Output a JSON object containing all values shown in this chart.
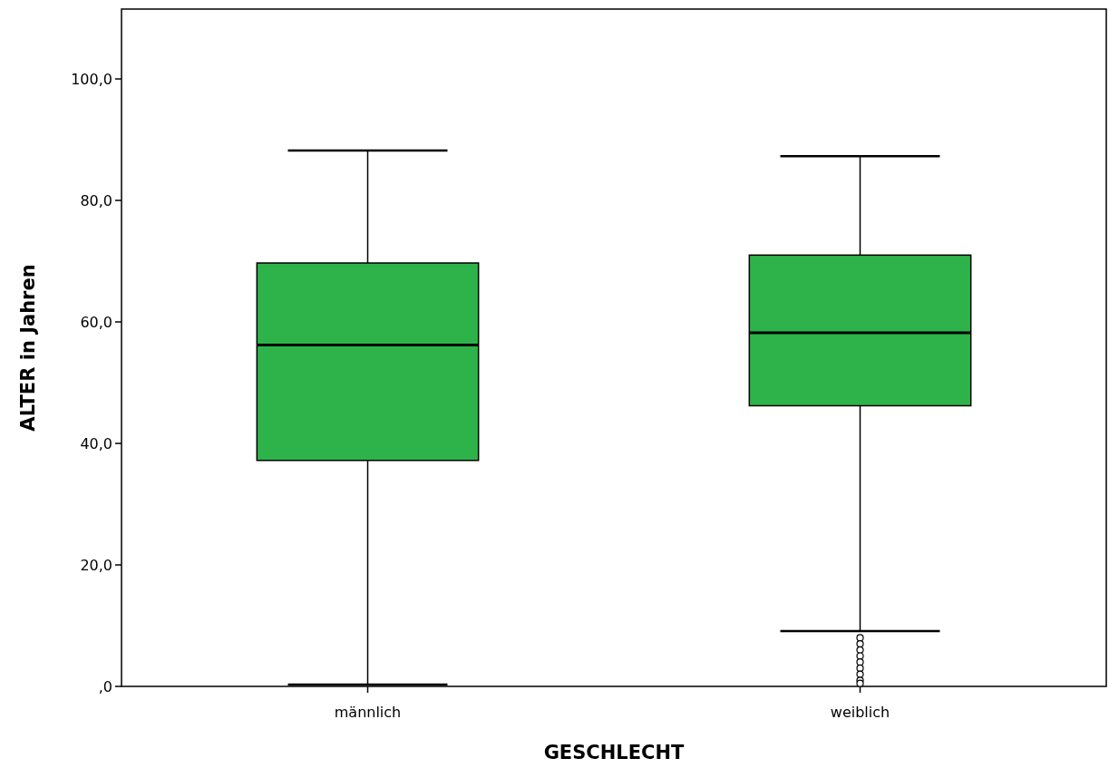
{
  "chart_data": {
    "type": "box",
    "xlabel": "GESCHLECHT",
    "ylabel": "ALTER in Jahren",
    "categories": [
      "männlich",
      "weiblich"
    ],
    "color": "#2db34a",
    "ylim": [
      0,
      111.5
    ],
    "yticks": [
      {
        "value": 0,
        "label": ",0"
      },
      {
        "value": 20,
        "label": "20,0"
      },
      {
        "value": 40,
        "label": "40,0"
      },
      {
        "value": 60,
        "label": "60,0"
      },
      {
        "value": 80,
        "label": "80,0"
      },
      {
        "value": 100,
        "label": "100,0"
      }
    ],
    "boxes": [
      {
        "low": 0.3,
        "q1": 37.2,
        "median": 56.2,
        "q3": 69.7,
        "high": 88.2
      },
      {
        "low": 9.1,
        "q1": 46.2,
        "median": 58.2,
        "q3": 71.0,
        "high": 87.3,
        "outliers": [
          8,
          7,
          6,
          5,
          4,
          3,
          2,
          1,
          0.5
        ]
      }
    ],
    "grid": false
  }
}
